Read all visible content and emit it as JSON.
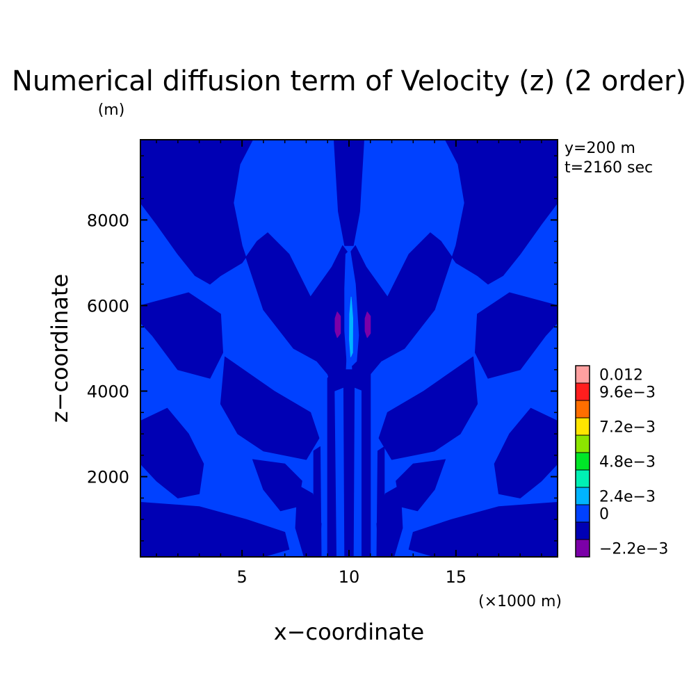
{
  "chart_data": {
    "type": "heatmap",
    "title": "Numerical diffusion term of Velocity (z) (2 order)",
    "xlabel": "x−coordinate",
    "ylabel": "z−coordinate",
    "x_unit": "(×1000 m)",
    "y_unit": "(m)",
    "annotations": [
      "y=200 m",
      "t=2160 sec"
    ],
    "xlim": [
      0.25,
      19.75
    ],
    "ylim": [
      125,
      9875
    ],
    "x_ticks": [
      5,
      10,
      15
    ],
    "x_tick_labels": [
      "5",
      "10",
      "15"
    ],
    "y_ticks": [
      2000,
      4000,
      6000,
      8000
    ],
    "y_tick_labels": [
      "2000",
      "4000",
      "6000",
      "8000"
    ],
    "background_level": "0",
    "colorbar": {
      "levels": [
        {
          "label": "−2.2e−3",
          "color": "#7b00a8"
        },
        {
          "label": "",
          "color": "#0000b4"
        },
        {
          "label": "0",
          "color": "#0041ff"
        },
        {
          "label": "2.4e−3",
          "color": "#00b4ff"
        },
        {
          "label": "",
          "color": "#00f0b4"
        },
        {
          "label": "4.8e−3",
          "color": "#00e628"
        },
        {
          "label": "",
          "color": "#8ce600"
        },
        {
          "label": "7.2e−3",
          "color": "#ffe600"
        },
        {
          "label": "",
          "color": "#ff6e00"
        },
        {
          "label": "9.6e−3",
          "color": "#ff1e1e"
        },
        {
          "label": "0.012",
          "color": "#ffa0a0"
        }
      ]
    },
    "regions": [
      {
        "level": "negative-small",
        "color": "#0000b4",
        "points": [
          [
            0.25,
            9875
          ],
          [
            5.5,
            9875
          ],
          [
            4.9,
            9300
          ],
          [
            4.6,
            8400
          ],
          [
            5.0,
            7400
          ],
          [
            6.0,
            5900
          ],
          [
            7.4,
            5000
          ],
          [
            8.5,
            4700
          ],
          [
            9.0,
            4400
          ],
          [
            9.3,
            4000
          ],
          [
            9.8,
            4100
          ],
          [
            9.9,
            5100
          ],
          [
            10.1,
            6500
          ],
          [
            10.0,
            7200
          ],
          [
            9.7,
            7400
          ],
          [
            9.2,
            6900
          ],
          [
            8.2,
            6200
          ],
          [
            7.2,
            7200
          ],
          [
            6.2,
            7700
          ],
          [
            5.7,
            7500
          ],
          [
            5.0,
            7000
          ],
          [
            4.0,
            6700
          ],
          [
            3.5,
            6500
          ],
          [
            2.8,
            6700
          ],
          [
            2.0,
            7200
          ],
          [
            1.0,
            7900
          ],
          [
            0.25,
            8400
          ]
        ]
      },
      {
        "level": "negative-small",
        "color": "#0000b4",
        "points": [
          [
            19.75,
            9875
          ],
          [
            14.5,
            9875
          ],
          [
            15.1,
            9300
          ],
          [
            15.4,
            8400
          ],
          [
            15.0,
            7400
          ],
          [
            14.0,
            5900
          ],
          [
            12.6,
            5000
          ],
          [
            11.5,
            4700
          ],
          [
            11.0,
            4400
          ],
          [
            10.7,
            4000
          ],
          [
            10.2,
            4100
          ],
          [
            10.1,
            5100
          ],
          [
            10.0,
            6500
          ],
          [
            10.0,
            7200
          ],
          [
            10.3,
            7400
          ],
          [
            10.8,
            6900
          ],
          [
            11.8,
            6200
          ],
          [
            12.8,
            7200
          ],
          [
            13.8,
            7700
          ],
          [
            14.3,
            7500
          ],
          [
            15.0,
            7000
          ],
          [
            16.0,
            6700
          ],
          [
            16.5,
            6500
          ],
          [
            17.2,
            6700
          ],
          [
            18.0,
            7200
          ],
          [
            19.0,
            7900
          ],
          [
            19.75,
            8400
          ]
        ]
      },
      {
        "level": "negative-small",
        "color": "#0000b4",
        "points": [
          [
            9.3,
            9875
          ],
          [
            10.7,
            9875
          ],
          [
            10.5,
            8200
          ],
          [
            10.2,
            7400
          ],
          [
            9.8,
            7400
          ],
          [
            9.5,
            8200
          ]
        ]
      },
      {
        "level": "negative-small",
        "color": "#0000b4",
        "points": [
          [
            0.25,
            6000
          ],
          [
            2.5,
            6300
          ],
          [
            4.0,
            5800
          ],
          [
            4.1,
            4900
          ],
          [
            3.5,
            4300
          ],
          [
            2.0,
            4500
          ],
          [
            0.8,
            5300
          ],
          [
            0.25,
            5600
          ]
        ]
      },
      {
        "level": "negative-small",
        "color": "#0000b4",
        "points": [
          [
            19.75,
            6000
          ],
          [
            17.5,
            6300
          ],
          [
            16.0,
            5800
          ],
          [
            15.9,
            4900
          ],
          [
            16.5,
            4300
          ],
          [
            18.0,
            4500
          ],
          [
            19.2,
            5300
          ],
          [
            19.75,
            5600
          ]
        ]
      },
      {
        "level": "negative-small",
        "color": "#0000b4",
        "points": [
          [
            4.2,
            4800
          ],
          [
            6.5,
            4000
          ],
          [
            8.2,
            3500
          ],
          [
            8.6,
            2900
          ],
          [
            8.0,
            2400
          ],
          [
            6.0,
            2600
          ],
          [
            4.8,
            3000
          ],
          [
            4.0,
            3700
          ]
        ]
      },
      {
        "level": "negative-small",
        "color": "#0000b4",
        "points": [
          [
            15.8,
            4800
          ],
          [
            13.5,
            4000
          ],
          [
            11.8,
            3500
          ],
          [
            11.4,
            2900
          ],
          [
            12.0,
            2400
          ],
          [
            14.0,
            2600
          ],
          [
            15.2,
            3000
          ],
          [
            16.0,
            3700
          ]
        ]
      },
      {
        "level": "negative-small",
        "color": "#0000b4",
        "points": [
          [
            0.25,
            3300
          ],
          [
            1.5,
            3600
          ],
          [
            2.5,
            3000
          ],
          [
            3.2,
            2300
          ],
          [
            3.0,
            1600
          ],
          [
            2.0,
            1500
          ],
          [
            1.0,
            1900
          ],
          [
            0.25,
            2300
          ]
        ]
      },
      {
        "level": "negative-small",
        "color": "#0000b4",
        "points": [
          [
            19.75,
            3300
          ],
          [
            18.5,
            3600
          ],
          [
            17.5,
            3000
          ],
          [
            16.8,
            2300
          ],
          [
            17.0,
            1600
          ],
          [
            18.0,
            1500
          ],
          [
            19.0,
            1900
          ],
          [
            19.75,
            2300
          ]
        ]
      },
      {
        "level": "negative-small",
        "color": "#0000b4",
        "points": [
          [
            0.25,
            1400
          ],
          [
            3.0,
            1300
          ],
          [
            5.2,
            1000
          ],
          [
            7.0,
            700
          ],
          [
            7.2,
            300
          ],
          [
            6.0,
            125
          ],
          [
            0.25,
            125
          ]
        ]
      },
      {
        "level": "negative-small",
        "color": "#0000b4",
        "points": [
          [
            19.75,
            1400
          ],
          [
            17.0,
            1300
          ],
          [
            14.8,
            1000
          ],
          [
            13.0,
            700
          ],
          [
            12.8,
            300
          ],
          [
            14.0,
            125
          ],
          [
            19.75,
            125
          ]
        ]
      },
      {
        "level": "negative-small",
        "color": "#0000b4",
        "points": [
          [
            5.5,
            2400
          ],
          [
            7.0,
            2300
          ],
          [
            7.8,
            1900
          ],
          [
            7.6,
            1300
          ],
          [
            6.8,
            1200
          ],
          [
            6.0,
            1700
          ]
        ]
      },
      {
        "level": "negative-small",
        "color": "#0000b4",
        "points": [
          [
            14.5,
            2400
          ],
          [
            13.0,
            2300
          ],
          [
            12.2,
            1900
          ],
          [
            12.4,
            1300
          ],
          [
            13.2,
            1200
          ],
          [
            14.0,
            1700
          ]
        ]
      },
      {
        "level": "negative-small",
        "color": "#0000b4",
        "points": [
          [
            7.6,
            1800
          ],
          [
            8.3,
            1600
          ],
          [
            8.7,
            900
          ],
          [
            8.6,
            125
          ],
          [
            7.9,
            125
          ],
          [
            7.5,
            800
          ]
        ]
      },
      {
        "level": "negative-small",
        "color": "#0000b4",
        "points": [
          [
            12.4,
            1800
          ],
          [
            11.7,
            1600
          ],
          [
            11.3,
            900
          ],
          [
            11.4,
            125
          ],
          [
            12.1,
            125
          ],
          [
            12.5,
            800
          ]
        ]
      },
      {
        "level": "negative-small",
        "color": "#0000b4",
        "points": [
          [
            9.0,
            4300
          ],
          [
            9.3,
            4500
          ],
          [
            9.4,
            125
          ],
          [
            9.0,
            125
          ]
        ]
      },
      {
        "level": "negative-small",
        "color": "#0000b4",
        "points": [
          [
            10.6,
            4300
          ],
          [
            11.0,
            4500
          ],
          [
            11.0,
            125
          ],
          [
            10.6,
            125
          ]
        ]
      },
      {
        "level": "negative-small",
        "color": "#0000b4",
        "points": [
          [
            9.75,
            4500
          ],
          [
            10.25,
            4500
          ],
          [
            10.2,
            125
          ],
          [
            9.8,
            125
          ]
        ]
      },
      {
        "level": "negative-small",
        "color": "#0000b4",
        "points": [
          [
            8.35,
            2600
          ],
          [
            8.65,
            2700
          ],
          [
            8.7,
            125
          ],
          [
            8.35,
            125
          ]
        ]
      },
      {
        "level": "negative-small",
        "color": "#0000b4",
        "points": [
          [
            11.35,
            2600
          ],
          [
            11.65,
            2700
          ],
          [
            11.65,
            125
          ],
          [
            11.3,
            125
          ]
        ]
      },
      {
        "level": "negative-small",
        "color": "#0000b4",
        "points": [
          [
            0.25,
            900
          ],
          [
            2.0,
            950
          ],
          [
            2.2,
            600
          ],
          [
            0.25,
            500
          ]
        ]
      },
      {
        "level": "negative-small",
        "color": "#0000b4",
        "points": [
          [
            19.75,
            900
          ],
          [
            18.0,
            950
          ],
          [
            17.8,
            600
          ],
          [
            19.75,
            500
          ]
        ]
      },
      {
        "level": "zero",
        "color": "#0041ff",
        "points": [
          [
            9.85,
            7200
          ],
          [
            10.05,
            7300
          ],
          [
            10.3,
            6500
          ],
          [
            10.45,
            5300
          ],
          [
            10.35,
            4700
          ],
          [
            10.15,
            4600
          ],
          [
            9.9,
            4700
          ],
          [
            9.8,
            5400
          ],
          [
            9.8,
            6400
          ]
        ]
      },
      {
        "level": "positive-2.4e-3",
        "color": "#00b4ff",
        "points": [
          [
            10.1,
            6200
          ],
          [
            10.18,
            5700
          ],
          [
            10.17,
            4900
          ],
          [
            10.08,
            4800
          ],
          [
            10.02,
            5200
          ],
          [
            10.03,
            5800
          ]
        ]
      },
      {
        "level": "min",
        "color": "#7b00a8",
        "points": [
          [
            9.45,
            5850
          ],
          [
            9.6,
            5750
          ],
          [
            9.6,
            5350
          ],
          [
            9.45,
            5250
          ],
          [
            9.35,
            5400
          ],
          [
            9.35,
            5700
          ]
        ]
      },
      {
        "level": "min",
        "color": "#7b00a8",
        "points": [
          [
            10.85,
            5850
          ],
          [
            11.0,
            5750
          ],
          [
            11.0,
            5350
          ],
          [
            10.85,
            5250
          ],
          [
            10.75,
            5400
          ],
          [
            10.75,
            5700
          ]
        ]
      }
    ]
  }
}
